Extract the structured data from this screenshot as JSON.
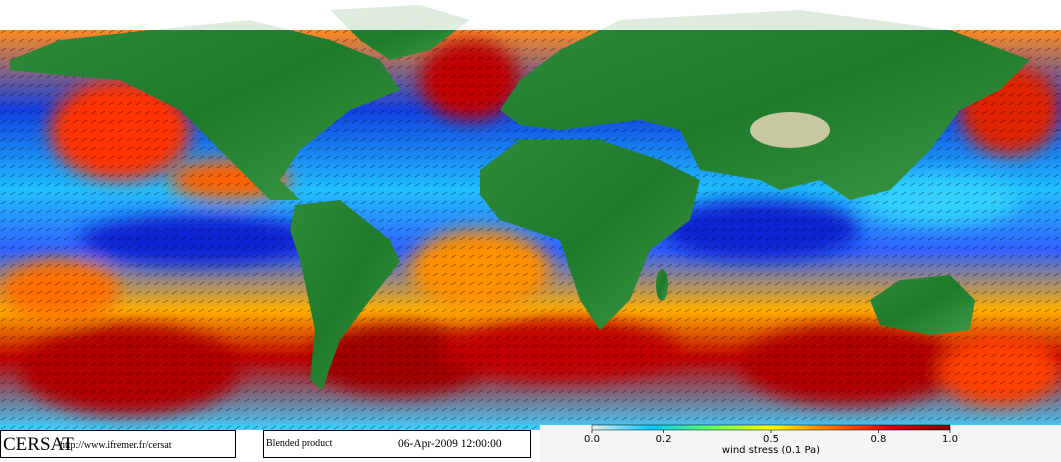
{
  "footer": {
    "logo": "CERSAT",
    "url": "http://www.ifremer.fr/cersat",
    "product": "Blended product",
    "date": "06-Apr-2009 12:00:00"
  },
  "colorbar": {
    "label": "wind stress (0.1 Pa)",
    "lim": [
      0,
      1
    ],
    "ticks": [
      {
        "value": 0,
        "label": "0.0"
      },
      0.2,
      0.5,
      0.8,
      {
        "value": 1,
        "label": "1.0"
      }
    ],
    "colors": [
      "#e8f0e8",
      "#00c8ff",
      "#60ff60",
      "#ffff00",
      "#ff7000",
      "#e00000",
      "#7a0000"
    ]
  }
}
